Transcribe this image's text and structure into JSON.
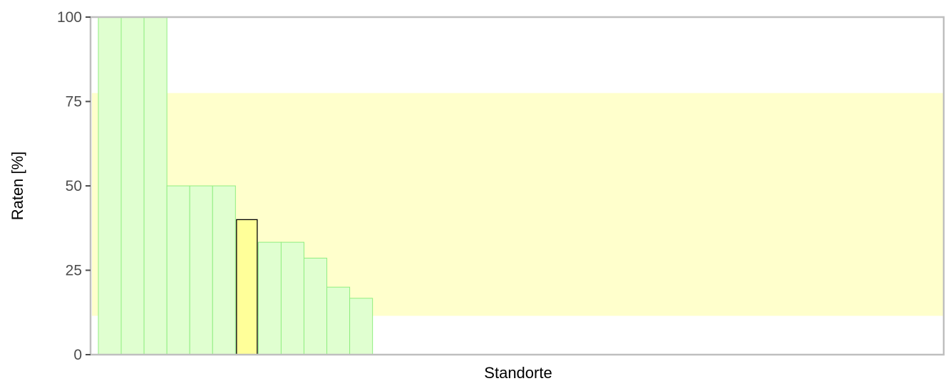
{
  "chart_data": {
    "type": "bar",
    "title": "",
    "xlabel": "Standorte",
    "ylabel": "Raten [%]",
    "ylim": [
      0,
      100
    ],
    "yticks": [
      0,
      25,
      50,
      75,
      100
    ],
    "reference_band": {
      "from": 11.5,
      "to": 77.5,
      "color": "#ffffcc"
    },
    "values": [
      100,
      100,
      100,
      50,
      50,
      50,
      40,
      33.3,
      33.3,
      28.6,
      20,
      16.7
    ],
    "highlight_index": 6,
    "bar_slots": 37,
    "colors": {
      "bar_fill": "#e0ffd0",
      "bar_stroke": "#90ee80",
      "highlight_fill": "#ffff99",
      "highlight_stroke": "#000000",
      "axis": "#bfbfbf"
    }
  }
}
